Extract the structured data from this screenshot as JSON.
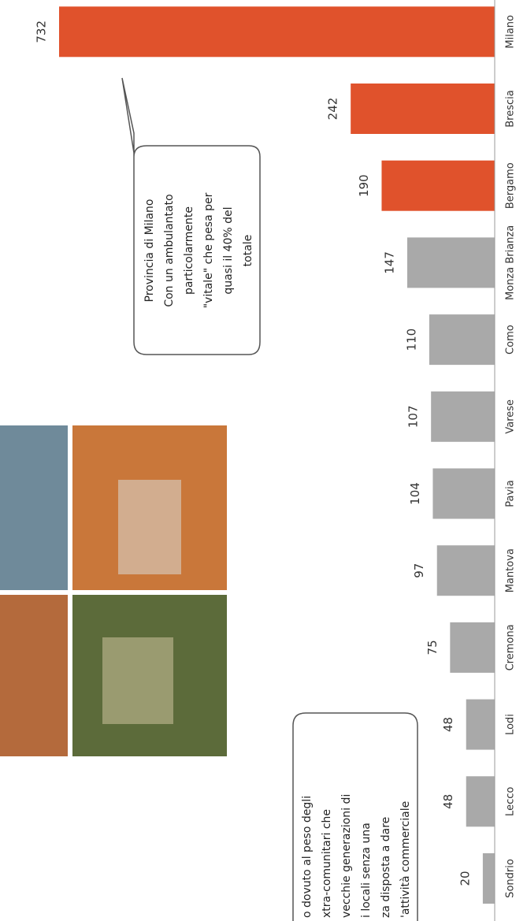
{
  "chart_data": {
    "type": "bar",
    "categories": [
      "Sondrio",
      "Lecco",
      "Lodi",
      "Cremona",
      "Mantova",
      "Pavia",
      "Varese",
      "Como",
      "Monza Brianza",
      "Bergamo",
      "Brescia",
      "Milano"
    ],
    "values": [
      20,
      48,
      48,
      75,
      97,
      104,
      107,
      110,
      147,
      190,
      242,
      732
    ],
    "colors": [
      "#a9a9a9",
      "#a9a9a9",
      "#a9a9a9",
      "#a9a9a9",
      "#a9a9a9",
      "#a9a9a9",
      "#a9a9a9",
      "#a9a9a9",
      "#a9a9a9",
      "#e0522c",
      "#e0522c",
      "#e0522c"
    ],
    "annotations": [
      [
        "Provincia di Milano",
        "Con un ambulantato",
        "particolarmente",
        "\"vitale\" che pesa per",
        "quasi il 40% del",
        "totale"
      ],
      [
        "o dovuto al peso degli",
        "xtra-comunitari che",
        "vecchie generazioni di",
        "i locali senza una",
        "za disposta a dare",
        "'attività commerciale"
      ]
    ]
  }
}
